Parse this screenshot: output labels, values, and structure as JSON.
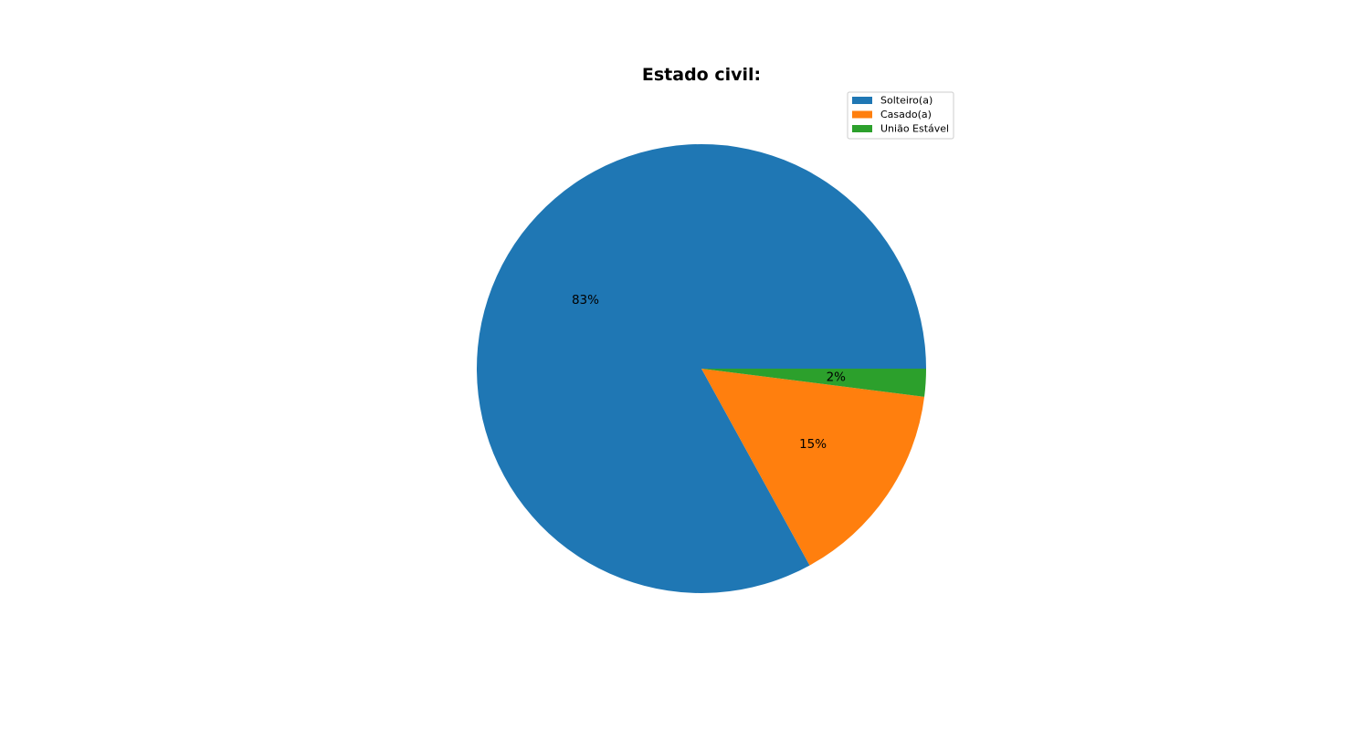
{
  "chart_data": {
    "type": "pie",
    "title": "Estado civil:",
    "categories": [
      "Solteiro(a)",
      "Casado(a)",
      "União Estável"
    ],
    "values": [
      83,
      15,
      2
    ],
    "value_labels": [
      "83%",
      "15%",
      "2%"
    ],
    "colors": [
      "#1f77b4",
      "#ff7f0e",
      "#2ca02c"
    ],
    "start_angle_deg": 0,
    "direction": "counterclockwise",
    "legend": {
      "placement": "top-right",
      "entries": [
        "Solteiro(a)",
        "Casado(a)",
        "União Estável"
      ]
    }
  }
}
